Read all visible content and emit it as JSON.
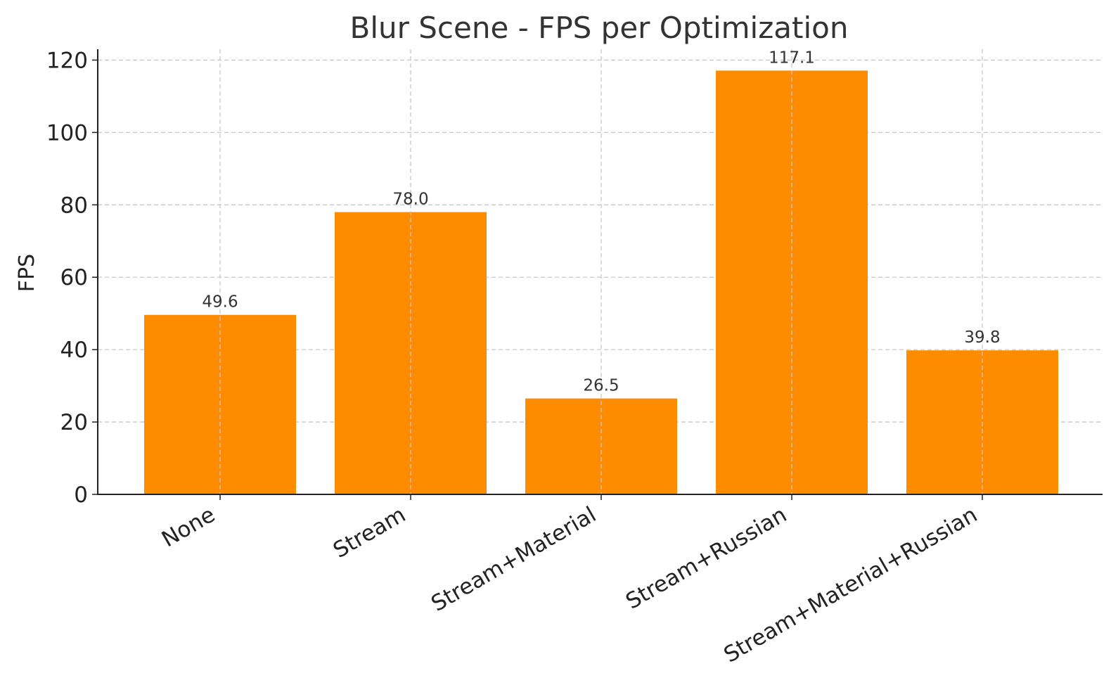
{
  "chart_data": {
    "type": "bar",
    "title": "Blur Scene - FPS per Optimization",
    "xlabel": "",
    "ylabel": "FPS",
    "categories": [
      "None",
      "Stream",
      "Stream+Material",
      "Stream+Russian",
      "Stream+Material+Russian"
    ],
    "values": [
      49.6,
      78.0,
      26.5,
      117.1,
      39.8
    ],
    "value_labels": [
      "49.6",
      "78.0",
      "26.5",
      "117.1",
      "39.8"
    ],
    "yticks": [
      0,
      20,
      40,
      60,
      80,
      100,
      120
    ],
    "ylim": [
      0,
      123
    ],
    "grid": true,
    "legend": "none",
    "colors": {
      "bar": "#ff8c00",
      "grid": "#c8c8c8",
      "text": "#333333",
      "axis": "#222222"
    }
  }
}
